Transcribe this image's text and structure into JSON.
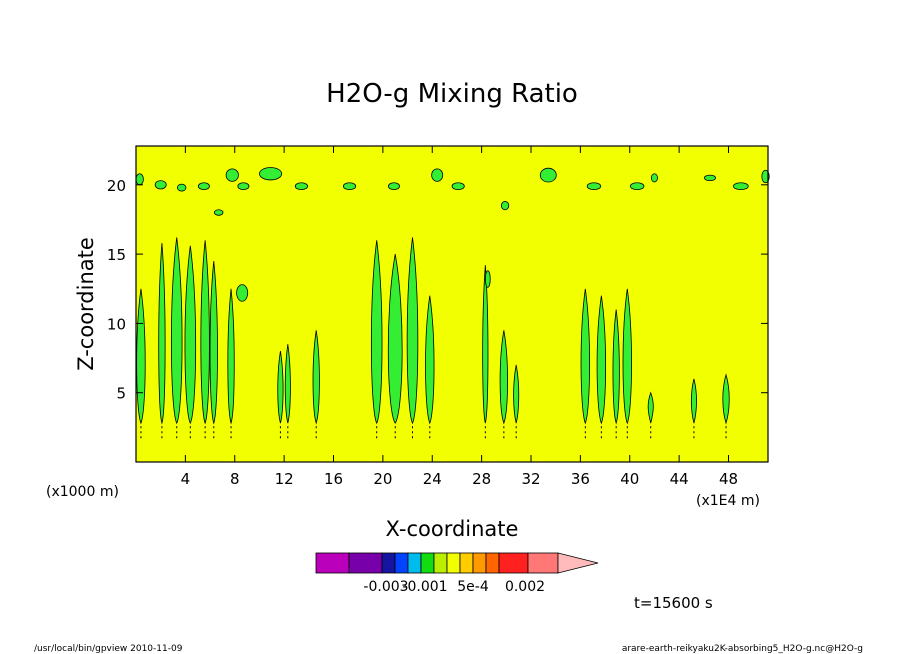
{
  "chart_data": {
    "type": "heatmap",
    "title": "H2O-g Mixing Ratio",
    "xlabel": "X-coordinate",
    "ylabel": "Z-coordinate",
    "x_unit_label": "(x1000 m)",
    "x_multiplier_label": "(x1E4 m)",
    "x_ticks": [
      "4",
      "8",
      "12",
      "16",
      "20",
      "24",
      "28",
      "32",
      "36",
      "40",
      "44",
      "48"
    ],
    "y_ticks": [
      "5",
      "10",
      "15",
      "20"
    ],
    "xlim": [
      0,
      51.2
    ],
    "ylim": [
      0,
      22.8
    ],
    "grid": false,
    "background_color": "#f2ff00",
    "anomaly_color": "#33ee33",
    "colorbar": {
      "colors": [
        "#bb00bb",
        "#7700aa",
        "#1515a0",
        "#0044ff",
        "#00bbee",
        "#11dd11",
        "#bbee00",
        "#f2ff00",
        "#ffcc00",
        "#ff9900",
        "#ff6600",
        "#ff2020",
        "#ff7777",
        "#ffbbbb"
      ],
      "labels": [
        "-0.003",
        "-0.001",
        "5e-4",
        "0.002"
      ]
    },
    "time_label": "t=15600 s",
    "plumes": [
      {
        "x": 0.4,
        "top": 12.5,
        "width": 0.8
      },
      {
        "x": 2.1,
        "top": 15.8,
        "width": 0.6
      },
      {
        "x": 3.3,
        "top": 16.2,
        "width": 1.0
      },
      {
        "x": 4.4,
        "top": 15.6,
        "width": 1.0
      },
      {
        "x": 5.6,
        "top": 16.0,
        "width": 0.8
      },
      {
        "x": 6.3,
        "top": 14.5,
        "width": 0.7
      },
      {
        "x": 7.7,
        "top": 12.5,
        "width": 0.6
      },
      {
        "x": 11.7,
        "top": 8.0,
        "width": 0.5
      },
      {
        "x": 12.3,
        "top": 8.5,
        "width": 0.4
      },
      {
        "x": 14.6,
        "top": 9.5,
        "width": 0.6
      },
      {
        "x": 19.5,
        "top": 16.0,
        "width": 1.0
      },
      {
        "x": 21.0,
        "top": 15.0,
        "width": 1.3
      },
      {
        "x": 22.4,
        "top": 16.2,
        "width": 1.0
      },
      {
        "x": 23.8,
        "top": 12.0,
        "width": 0.8
      },
      {
        "x": 28.3,
        "top": 14.2,
        "width": 0.5
      },
      {
        "x": 29.8,
        "top": 9.5,
        "width": 0.7
      },
      {
        "x": 30.8,
        "top": 7.0,
        "width": 0.4
      },
      {
        "x": 36.4,
        "top": 12.5,
        "width": 0.8
      },
      {
        "x": 37.7,
        "top": 12.0,
        "width": 0.8
      },
      {
        "x": 38.9,
        "top": 11.0,
        "width": 0.6
      },
      {
        "x": 39.8,
        "top": 12.5,
        "width": 0.8
      },
      {
        "x": 41.7,
        "top": 5.0,
        "width": 0.3
      },
      {
        "x": 45.2,
        "top": 6.0,
        "width": 0.4
      },
      {
        "x": 47.8,
        "top": 6.3,
        "width": 0.6
      }
    ],
    "upper_blobs": [
      {
        "x": 0.3,
        "z": 20.4,
        "w": 0.6,
        "h": 0.8
      },
      {
        "x": 2.0,
        "z": 20.0,
        "w": 0.9,
        "h": 0.6
      },
      {
        "x": 3.7,
        "z": 19.8,
        "w": 0.7,
        "h": 0.5
      },
      {
        "x": 5.5,
        "z": 19.9,
        "w": 0.9,
        "h": 0.5
      },
      {
        "x": 7.8,
        "z": 20.7,
        "w": 1.0,
        "h": 0.9
      },
      {
        "x": 8.7,
        "z": 19.9,
        "w": 0.9,
        "h": 0.5
      },
      {
        "x": 10.9,
        "z": 20.8,
        "w": 1.8,
        "h": 0.9
      },
      {
        "x": 13.4,
        "z": 19.9,
        "w": 1.0,
        "h": 0.5
      },
      {
        "x": 17.3,
        "z": 19.9,
        "w": 1.0,
        "h": 0.5
      },
      {
        "x": 20.9,
        "z": 19.9,
        "w": 0.9,
        "h": 0.5
      },
      {
        "x": 24.4,
        "z": 20.7,
        "w": 0.9,
        "h": 0.9
      },
      {
        "x": 26.1,
        "z": 19.9,
        "w": 1.0,
        "h": 0.5
      },
      {
        "x": 33.4,
        "z": 20.7,
        "w": 1.3,
        "h": 1.0
      },
      {
        "x": 37.1,
        "z": 19.9,
        "w": 1.1,
        "h": 0.5
      },
      {
        "x": 40.6,
        "z": 19.9,
        "w": 1.1,
        "h": 0.5
      },
      {
        "x": 42.0,
        "z": 20.5,
        "w": 0.5,
        "h": 0.6
      },
      {
        "x": 46.5,
        "z": 20.5,
        "w": 0.9,
        "h": 0.4
      },
      {
        "x": 49.0,
        "z": 19.9,
        "w": 1.2,
        "h": 0.5
      },
      {
        "x": 51.0,
        "z": 20.6,
        "w": 0.6,
        "h": 0.9
      }
    ],
    "side_blobs": [
      {
        "x": 8.6,
        "z": 12.2,
        "w": 0.9,
        "h": 1.2
      },
      {
        "x": 28.5,
        "z": 13.2,
        "w": 0.4,
        "h": 1.2
      },
      {
        "x": 29.9,
        "z": 18.5,
        "w": 0.6,
        "h": 0.6
      },
      {
        "x": 6.7,
        "z": 18.0,
        "w": 0.7,
        "h": 0.4
      }
    ]
  },
  "footer": {
    "left": "/usr/local/bin/gpview  2010-11-09",
    "right": "arare-earth-reikyaku2K-absorbing5_H2O-g.nc@H2O-g"
  }
}
